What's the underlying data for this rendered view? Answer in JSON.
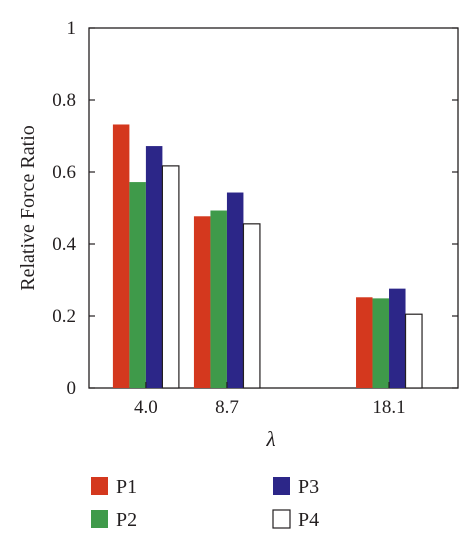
{
  "chart_data": {
    "type": "bar",
    "xlabel": "λ",
    "ylabel": "Relative Force Ratio",
    "ylim": [
      0,
      1
    ],
    "yticks": [
      "0",
      "0.2",
      "0.4",
      "0.6",
      "0.8",
      "1"
    ],
    "x_axis_numeric": true,
    "x_positions": [
      4.0,
      8.7,
      18.1
    ],
    "categories": [
      "4.0",
      "8.7",
      "18.1"
    ],
    "grid": false,
    "legend_position": "bottom",
    "series": [
      {
        "name": "P1",
        "color": "#d4381e",
        "values": [
          0.732,
          0.477,
          0.252
        ]
      },
      {
        "name": "P2",
        "color": "#3f9a4a",
        "values": [
          0.572,
          0.493,
          0.249
        ]
      },
      {
        "name": "P3",
        "color": "#2c2688",
        "values": [
          0.672,
          0.543,
          0.276
        ]
      },
      {
        "name": "P4",
        "color": "#ffffff",
        "values": [
          0.617,
          0.456,
          0.205
        ]
      }
    ]
  }
}
